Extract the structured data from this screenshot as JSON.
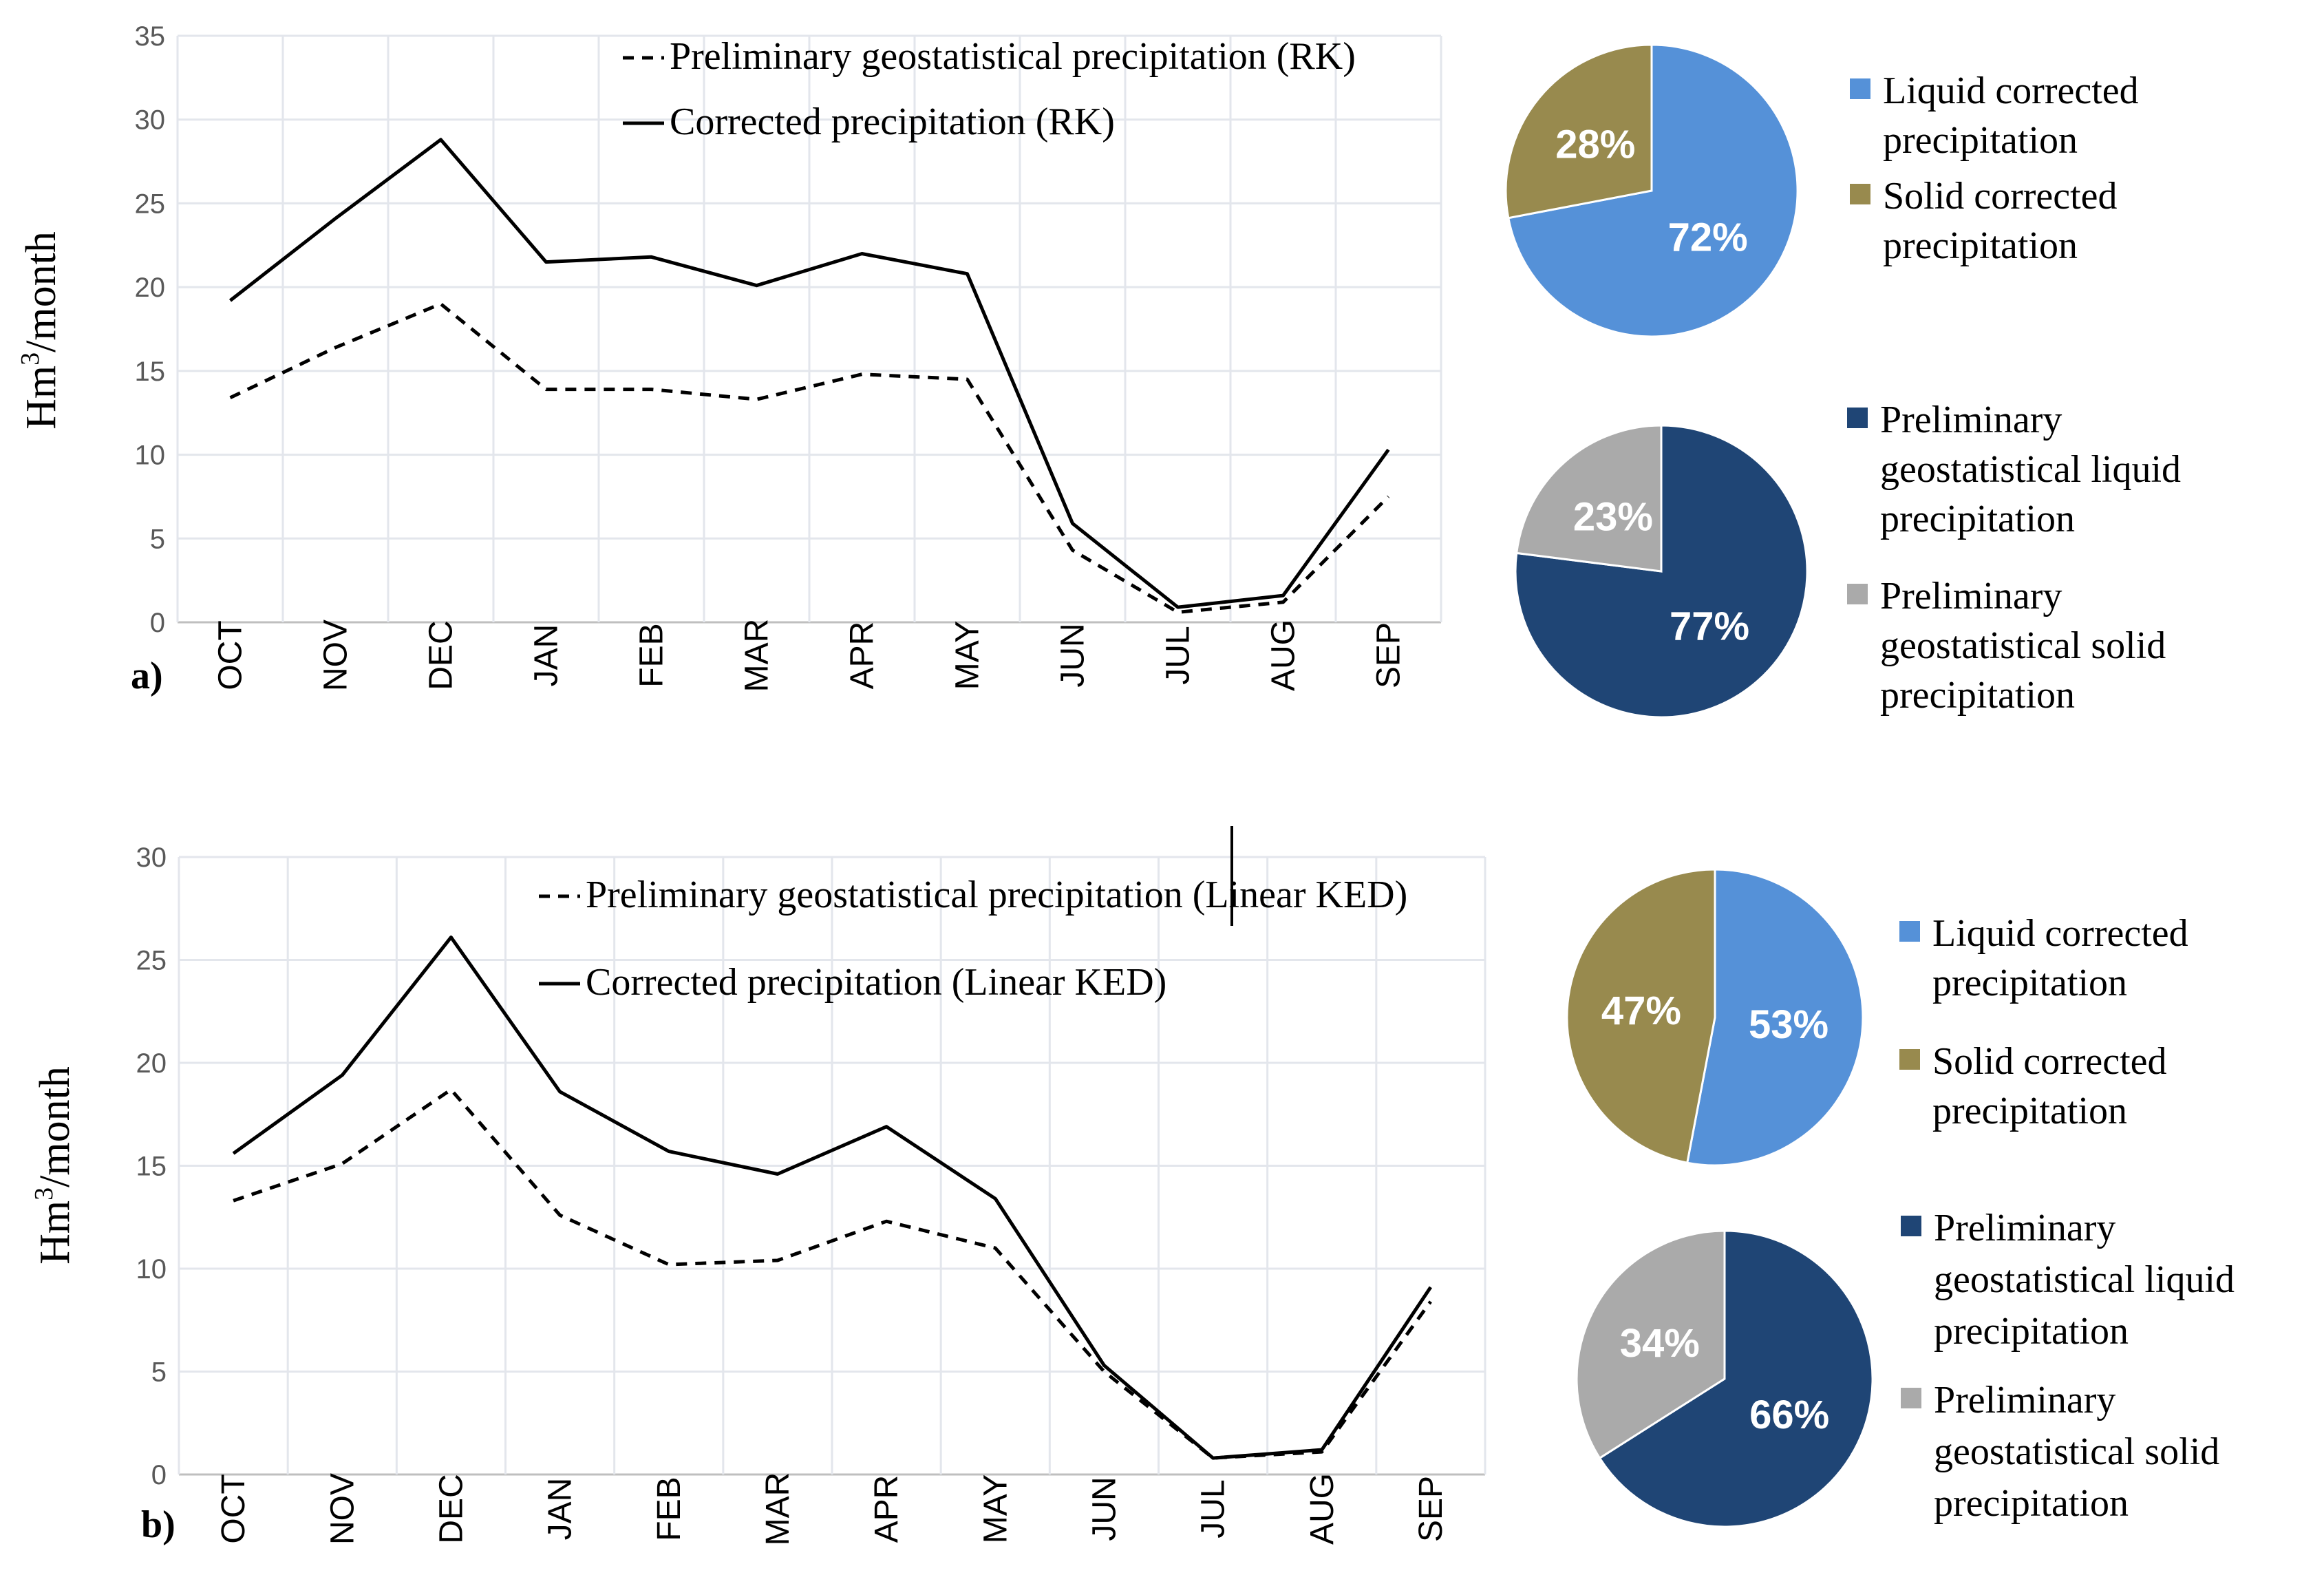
{
  "chart_data": [
    {
      "type": "line",
      "panel_label": "a)",
      "ylabel": "Hm3/month",
      "ylim": [
        0,
        35
      ],
      "yticks": [
        "0",
        "5",
        "10",
        "15",
        "20",
        "25",
        "30",
        "35"
      ],
      "grid": true,
      "categories": [
        "OCT",
        "NOV",
        "DEC",
        "JAN",
        "FEB",
        "MAR",
        "APR",
        "MAY",
        "JUN",
        "JUL",
        "AUG",
        "SEP"
      ],
      "legend_position": "top-right",
      "series": [
        {
          "name": "Preliminary geostatistical precipitation (RK)",
          "style": "dashed",
          "values": [
            13.4,
            16.4,
            19.0,
            13.9,
            13.9,
            13.3,
            14.8,
            14.5,
            4.3,
            0.6,
            1.2,
            7.5
          ]
        },
        {
          "name": "Corrected precipitation (RK)",
          "style": "solid",
          "values": [
            19.2,
            24.1,
            28.8,
            21.5,
            21.8,
            20.1,
            22.0,
            20.8,
            5.9,
            0.9,
            1.6,
            10.3
          ]
        }
      ]
    },
    {
      "type": "pie",
      "slices": [
        {
          "label": "72%",
          "name": "Liquid corrected precipitation",
          "value": 72,
          "color": "#5591D8"
        },
        {
          "label": "28%",
          "name": "Solid corrected precipitation",
          "value": 28,
          "color": "#988A4E"
        }
      ]
    },
    {
      "type": "pie",
      "slices": [
        {
          "label": "77%",
          "name": "Preliminary geostatistical liquid precipitation",
          "value": 77,
          "color": "#1F4575"
        },
        {
          "label": "23%",
          "name": "Preliminary geostatistical solid precipitation",
          "value": 23,
          "color": "#AAAAAA"
        }
      ]
    },
    {
      "type": "line",
      "panel_label": "b)",
      "ylabel": "Hm3/month",
      "ylim": [
        0,
        30
      ],
      "yticks": [
        "0",
        "5",
        "10",
        "15",
        "20",
        "25",
        "30"
      ],
      "grid": true,
      "categories": [
        "OCT",
        "NOV",
        "DEC",
        "JAN",
        "FEB",
        "MAR",
        "APR",
        "MAY",
        "JUN",
        "JUL",
        "AUG",
        "SEP"
      ],
      "legend_position": "top-right",
      "series": [
        {
          "name": "Preliminary geostatistical precipitation (Linear KED)",
          "style": "dashed",
          "values": [
            13.3,
            15.1,
            18.7,
            12.6,
            10.2,
            10.4,
            12.3,
            11.0,
            5.0,
            0.8,
            1.1,
            8.4
          ]
        },
        {
          "name": "Corrected precipitation (Linear KED)",
          "style": "solid",
          "values": [
            15.6,
            19.4,
            26.1,
            18.6,
            15.7,
            14.6,
            16.9,
            13.4,
            5.3,
            0.8,
            1.2,
            9.1
          ]
        }
      ]
    },
    {
      "type": "pie",
      "slices": [
        {
          "label": "53%",
          "name": "Liquid corrected precipitation",
          "value": 53,
          "color": "#5591D8"
        },
        {
          "label": "47%",
          "name": "Solid corrected precipitation",
          "value": 47,
          "color": "#988A4E"
        }
      ]
    },
    {
      "type": "pie",
      "slices": [
        {
          "label": "66%",
          "name": "Preliminary geostatistical liquid precipitation",
          "value": 66,
          "color": "#1F4575"
        },
        {
          "label": "34%",
          "name": "Preliminary geostatistical solid precipitation",
          "value": 34,
          "color": "#AAAAAA"
        }
      ]
    }
  ],
  "pie_legends": [
    {
      "items": [
        {
          "lines": [
            "Liquid corrected",
            "precipitation"
          ],
          "color": "#5591D8"
        },
        {
          "lines": [
            "Solid corrected",
            "precipitation"
          ],
          "color": "#988A4E"
        }
      ]
    },
    {
      "items": [
        {
          "lines": [
            "Preliminary",
            "geostatistical liquid",
            "precipitation"
          ],
          "color": "#1F4575"
        },
        {
          "lines": [
            "Preliminary",
            "geostatistical solid",
            "precipitation"
          ],
          "color": "#AAAAAA"
        }
      ]
    },
    {
      "items": [
        {
          "lines": [
            "Liquid corrected",
            "precipitation"
          ],
          "color": "#5591D8"
        },
        {
          "lines": [
            "Solid corrected",
            "precipitation"
          ],
          "color": "#988A4E"
        }
      ]
    },
    {
      "items": [
        {
          "lines": [
            "Preliminary",
            "geostatistical liquid",
            "precipitation"
          ],
          "color": "#1F4575"
        },
        {
          "lines": [
            "Preliminary",
            "geostatistical solid",
            "precipitation"
          ],
          "color": "#AAAAAA"
        }
      ]
    }
  ]
}
